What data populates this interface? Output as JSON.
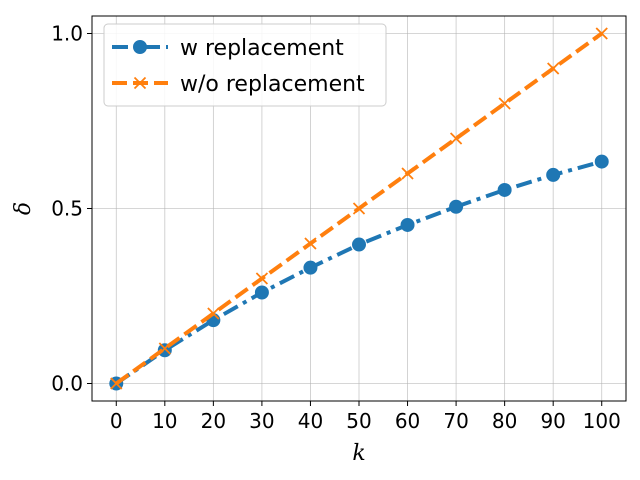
{
  "chart_data": {
    "type": "line",
    "title": "",
    "xlabel": "k",
    "ylabel": "δ",
    "x": [
      0,
      10,
      20,
      30,
      40,
      50,
      60,
      70,
      80,
      90,
      100
    ],
    "xticks": [
      "0",
      "10",
      "20",
      "30",
      "40",
      "50",
      "60",
      "70",
      "80",
      "90",
      "100"
    ],
    "yticks": [
      {
        "value": 0.0,
        "label": "0.0"
      },
      {
        "value": 0.5,
        "label": "0.5"
      },
      {
        "value": 1.0,
        "label": "1.0"
      }
    ],
    "xlim": [
      -5,
      105
    ],
    "ylim": [
      -0.05,
      1.05
    ],
    "grid": true,
    "legend_position": "top-left",
    "series": [
      {
        "name": "w replacement",
        "color": "#1f77b4",
        "line_style": "dash-dot",
        "marker": "circle",
        "values": [
          0.0,
          0.095,
          0.181,
          0.26,
          0.331,
          0.397,
          0.453,
          0.505,
          0.553,
          0.596,
          0.634
        ]
      },
      {
        "name": "w/o replacement",
        "color": "#ff7f0e",
        "line_style": "dashed",
        "marker": "x",
        "values": [
          0.0,
          0.1,
          0.2,
          0.3,
          0.4,
          0.5,
          0.6,
          0.7,
          0.8,
          0.9,
          1.0
        ]
      }
    ]
  }
}
